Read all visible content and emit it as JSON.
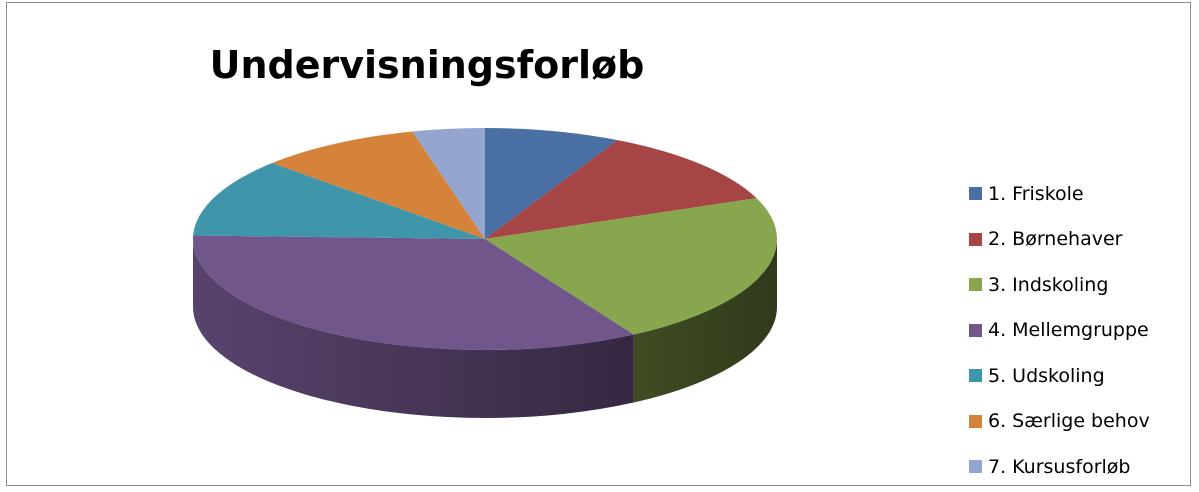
{
  "chart_data": {
    "type": "pie",
    "title": "Undervisningsforløb",
    "legend_position": "right",
    "three_d": true,
    "categories": [
      "1. Friskole",
      "2. Børnehaver",
      "3. Indskoling",
      "4. Mellemgruppe",
      "5. Udskoling",
      "6. Særlige behov",
      "7. Kursusforløb"
    ],
    "values": [
      7.5,
      11.5,
      22.5,
      34,
      11.5,
      9,
      4
    ],
    "colors": [
      "#4a6fa5",
      "#a54545",
      "#88a64d",
      "#71568c",
      "#3f96aa",
      "#d5823a",
      "#94a6cf"
    ]
  }
}
